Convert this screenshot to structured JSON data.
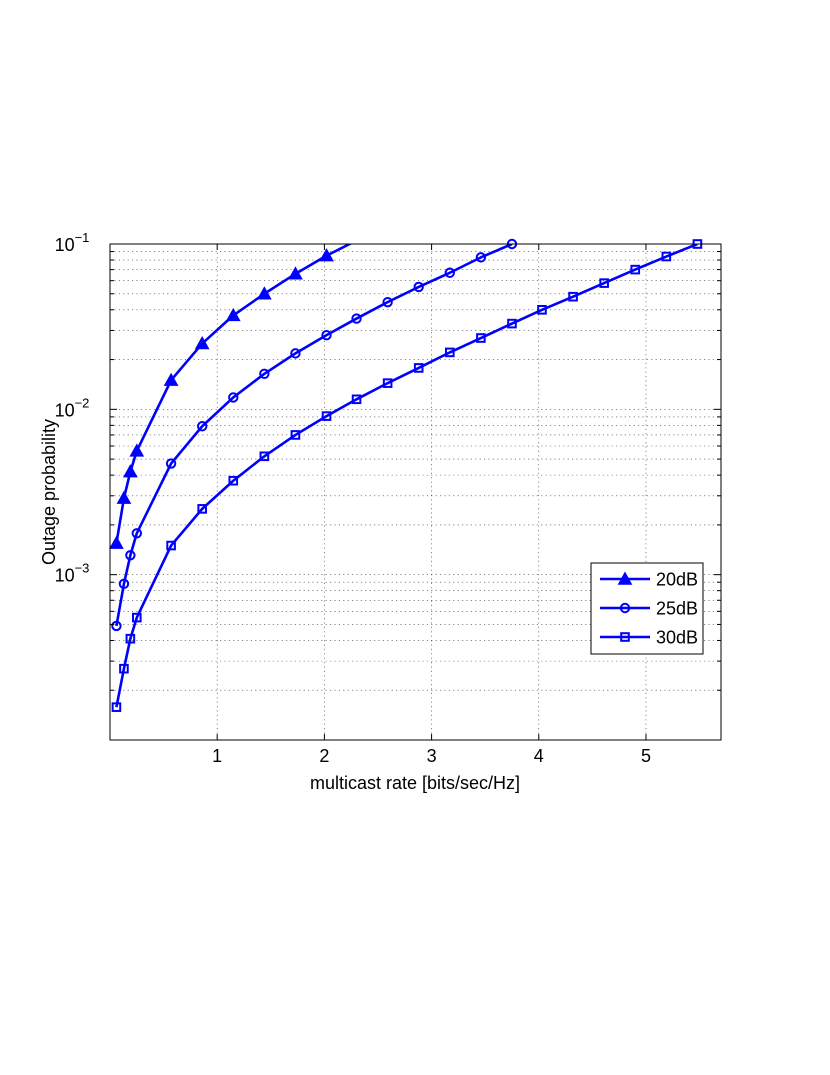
{
  "chart_data": {
    "type": "line",
    "xlabel": "multicast rate [bits/sec/Hz]",
    "ylabel": "Outage probability",
    "x_scale": "linear",
    "y_scale": "log",
    "xlim": [
      0,
      5.7
    ],
    "ylim": [
      0.0001,
      0.1
    ],
    "x_ticks": [
      1,
      2,
      3,
      4,
      5
    ],
    "x_tick_labels": [
      "1",
      "2",
      "3",
      "4",
      "5"
    ],
    "y_ticks": [
      0.001,
      0.01,
      0.1
    ],
    "y_tick_labels": [
      {
        "base": "10",
        "exp": "−3"
      },
      {
        "base": "10",
        "exp": "−2"
      },
      {
        "base": "10",
        "exp": "−1"
      }
    ],
    "grid": true,
    "legend_position": "lower-right",
    "line_color": "#0000ff",
    "series": [
      {
        "name": "20dB",
        "marker": "triangle",
        "x": [
          0.06,
          0.13,
          0.19,
          0.25,
          0.57,
          0.86,
          1.15,
          1.44,
          1.73,
          2.02,
          2.3
        ],
        "y": [
          0.00155,
          0.0029,
          0.0042,
          0.0056,
          0.015,
          0.025,
          0.037,
          0.05,
          0.066,
          0.085,
          0.105
        ]
      },
      {
        "name": "25dB",
        "marker": "circle",
        "x": [
          0.06,
          0.13,
          0.19,
          0.25,
          0.57,
          0.86,
          1.15,
          1.44,
          1.73,
          2.02,
          2.3,
          2.59,
          2.88,
          3.17,
          3.46,
          3.75
        ],
        "y": [
          0.00049,
          0.00088,
          0.00131,
          0.00178,
          0.0047,
          0.0079,
          0.0118,
          0.0164,
          0.0218,
          0.0281,
          0.0354,
          0.0445,
          0.055,
          0.067,
          0.083,
          0.1
        ]
      },
      {
        "name": "30dB",
        "marker": "square",
        "x": [
          0.06,
          0.13,
          0.19,
          0.25,
          0.57,
          0.86,
          1.15,
          1.44,
          1.73,
          2.02,
          2.3,
          2.59,
          2.88,
          3.17,
          3.46,
          3.75,
          4.03,
          4.32,
          4.61,
          4.9,
          5.19,
          5.48
        ],
        "y": [
          0.000158,
          0.00027,
          0.00041,
          0.00055,
          0.0015,
          0.0025,
          0.0037,
          0.0052,
          0.007,
          0.0091,
          0.0115,
          0.0144,
          0.0178,
          0.0221,
          0.027,
          0.033,
          0.04,
          0.048,
          0.058,
          0.07,
          0.084,
          0.1
        ]
      }
    ]
  }
}
